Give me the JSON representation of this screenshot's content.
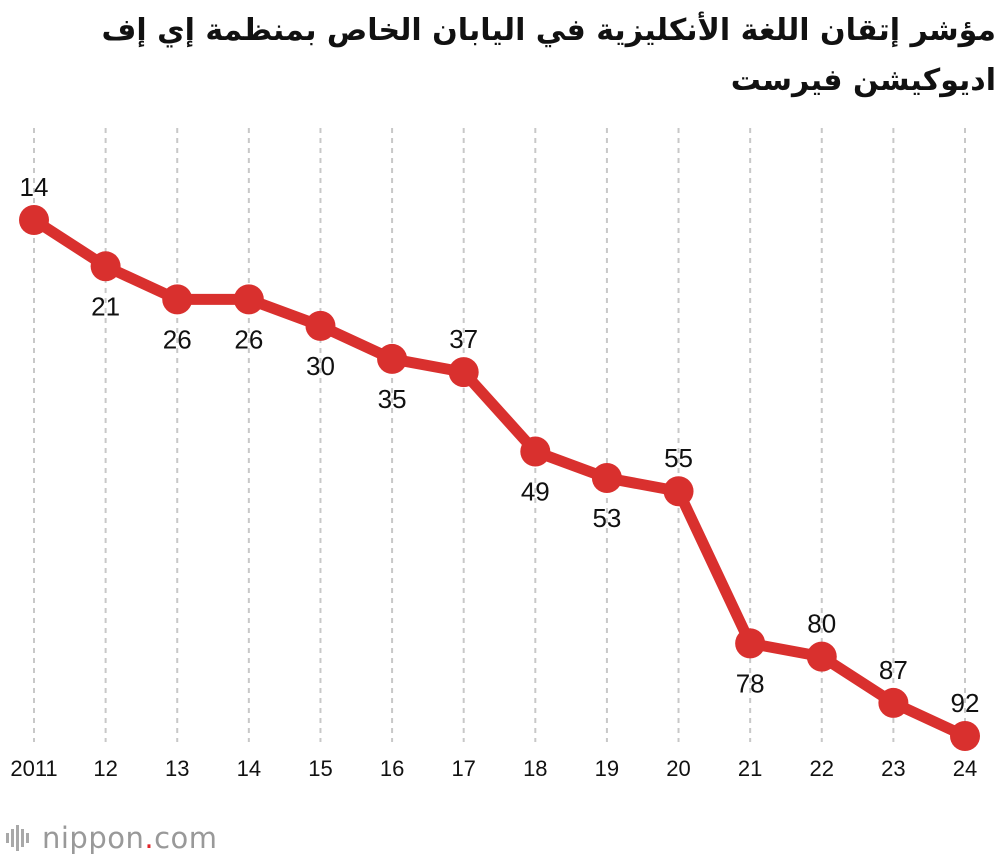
{
  "chart_data": {
    "type": "line",
    "title": "مؤشر إتقان اللغة الأنكليزية في اليابان الخاص بمنظمة إي إف اديوكيشن فيرست",
    "x": [
      "2011",
      "12",
      "13",
      "14",
      "15",
      "16",
      "17",
      "18",
      "19",
      "20",
      "21",
      "22",
      "23",
      "24"
    ],
    "series": [
      {
        "values": [
          14,
          21,
          26,
          26,
          30,
          35,
          37,
          49,
          53,
          55,
          78,
          80,
          87,
          92
        ]
      }
    ],
    "label_positions": [
      "above",
      "below",
      "below",
      "below",
      "below",
      "below",
      "above",
      "below",
      "below",
      "above",
      "below",
      "above",
      "above",
      "above"
    ],
    "y_axis": "inverted",
    "ylim": [
      14,
      92
    ],
    "grid": "vertical dashed",
    "colors": {
      "line": "#d9302e",
      "grid": "#c8c8c8"
    }
  },
  "footer": {
    "brand_name": "nippon",
    "brand_dot": ".",
    "brand_tld": "com",
    "icon": "nippon-logo-icon"
  }
}
